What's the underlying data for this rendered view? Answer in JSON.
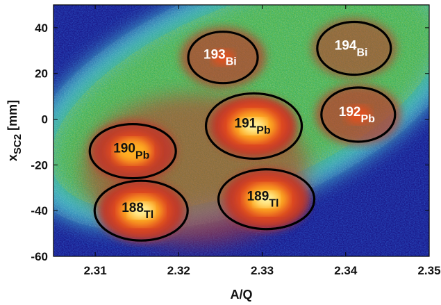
{
  "chart_data": {
    "type": "heatmap",
    "title": "",
    "xlabel": "A/Q",
    "ylabel_main": "x",
    "ylabel_sub": "SC2",
    "ylabel_unit": " [mm]",
    "xlim": [
      2.305,
      2.35
    ],
    "ylim": [
      -60,
      50
    ],
    "xticks": [
      "2.31",
      "2.32",
      "2.33",
      "2.34",
      "2.35"
    ],
    "xtick_values": [
      2.31,
      2.32,
      2.33,
      2.34,
      2.35
    ],
    "yticks": [
      "40",
      "20",
      "0",
      "-20",
      "-40",
      "-60"
    ],
    "ytick_values": [
      40,
      20,
      0,
      -20,
      -40,
      -60
    ],
    "grid": false,
    "background_band": {
      "center_x": 2.328,
      "center_y": 10,
      "slope_mm_per_AQ": -900
    },
    "colormap": [
      "#1a1a8c",
      "#2e5fd0",
      "#3fb0c8",
      "#38b05a",
      "#8fc23a",
      "#c0392b",
      "#e8501a",
      "#ffb020",
      "#fff5a0"
    ],
    "isotopes": [
      {
        "mass": "193",
        "element": "Bi",
        "x": 2.3253,
        "y": 27,
        "intensity": 0.35,
        "label_color": "#ffffff"
      },
      {
        "mass": "194",
        "element": "Bi",
        "x": 2.341,
        "y": 31,
        "intensity": 0.15,
        "label_color": "#ffffff"
      },
      {
        "mass": "192",
        "element": "Pb",
        "x": 2.3415,
        "y": 2,
        "intensity": 0.4,
        "label_color": "#ffffff"
      },
      {
        "mass": "191",
        "element": "Pb",
        "x": 2.329,
        "y": -3,
        "intensity": 1.0,
        "label_color": "#111111"
      },
      {
        "mass": "190",
        "element": "Pb",
        "x": 2.3145,
        "y": -14,
        "intensity": 0.8,
        "label_color": "#111111"
      },
      {
        "mass": "189",
        "element": "Tl",
        "x": 2.3305,
        "y": -35,
        "intensity": 0.95,
        "label_color": "#111111"
      },
      {
        "mass": "188",
        "element": "Tl",
        "x": 2.3155,
        "y": -40,
        "intensity": 0.95,
        "label_color": "#111111"
      }
    ]
  }
}
